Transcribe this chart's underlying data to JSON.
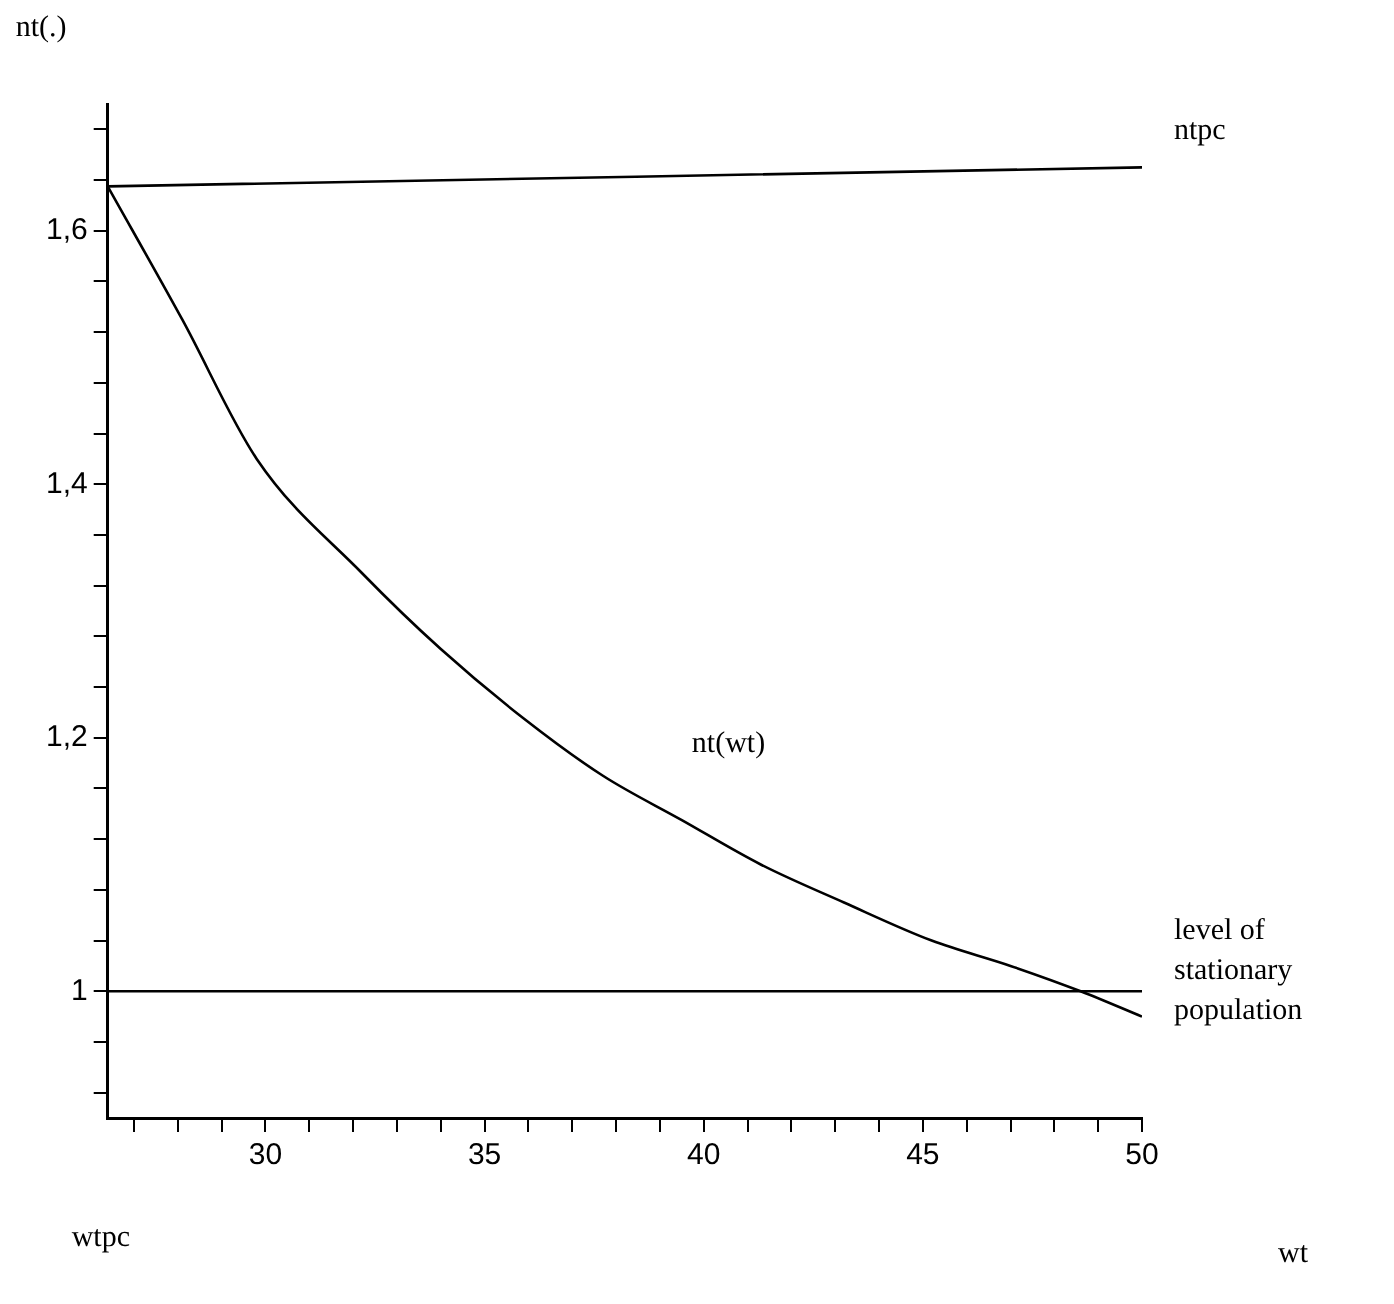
{
  "chart_data": {
    "type": "line",
    "ylabel": "nt(.)",
    "xlabel": "wt",
    "xlim": [
      26.4,
      50
    ],
    "ylim": [
      0.9,
      1.7
    ],
    "xticks": [
      {
        "value": 27,
        "label": null
      },
      {
        "value": 28,
        "label": null
      },
      {
        "value": 29,
        "label": null
      },
      30,
      {
        "value": 31,
        "label": null
      },
      {
        "value": 32,
        "label": null
      },
      {
        "value": 33,
        "label": null
      },
      {
        "value": 34,
        "label": null
      },
      35,
      {
        "value": 36,
        "label": null
      },
      {
        "value": 37,
        "label": null
      },
      {
        "value": 38,
        "label": null
      },
      {
        "value": 39,
        "label": null
      },
      40,
      {
        "value": 41,
        "label": null
      },
      {
        "value": 42,
        "label": null
      },
      {
        "value": 43,
        "label": null
      },
      {
        "value": 44,
        "label": null
      },
      45,
      {
        "value": 46,
        "label": null
      },
      {
        "value": 47,
        "label": null
      },
      {
        "value": 48,
        "label": null
      },
      {
        "value": 49,
        "label": null
      },
      50
    ],
    "yticks": [
      {
        "value": 0.92,
        "label": null
      },
      {
        "value": 0.96,
        "label": null
      },
      1,
      {
        "value": 1.04,
        "label": null
      },
      {
        "value": 1.08,
        "label": null
      },
      {
        "value": 1.12,
        "label": null
      },
      {
        "value": 1.16,
        "label": null
      },
      {
        "value": 1.2,
        "label": "1,2"
      },
      {
        "value": 1.24,
        "label": null
      },
      {
        "value": 1.28,
        "label": null
      },
      {
        "value": 1.32,
        "label": null
      },
      {
        "value": 1.36,
        "label": null
      },
      {
        "value": 1.4,
        "label": "1,4"
      },
      {
        "value": 1.44,
        "label": null
      },
      {
        "value": 1.48,
        "label": null
      },
      {
        "value": 1.52,
        "label": null
      },
      {
        "value": 1.56,
        "label": null
      },
      {
        "value": 1.6,
        "label": "1,6"
      },
      {
        "value": 1.64,
        "label": null
      },
      {
        "value": 1.68,
        "label": null
      }
    ],
    "grid": false,
    "legend": false,
    "marker": "none",
    "line_style": "solid",
    "series": [
      {
        "name": "ntpc",
        "color": "#000000",
        "x": [
          26.4,
          50
        ],
        "values": [
          1.635,
          1.65
        ]
      },
      {
        "name": "nt(wt)",
        "color": "#000000",
        "x": [
          26.4,
          28.1,
          29.8,
          32.2,
          34,
          35.9,
          37.7,
          39.5,
          41.3,
          43.2,
          45.2,
          47,
          48.6,
          50
        ],
        "values": [
          1.635,
          1.53,
          1.42,
          1.33,
          1.27,
          1.215,
          1.17,
          1.135,
          1.1,
          1.07,
          1.04,
          1.02,
          1,
          0.98
        ]
      }
    ],
    "ref_lines": [
      {
        "axis": "y",
        "value": 1,
        "label": "level of stationary population",
        "color": "#000000",
        "line_style": "solid"
      }
    ],
    "annotations": [
      "wtpc"
    ]
  }
}
